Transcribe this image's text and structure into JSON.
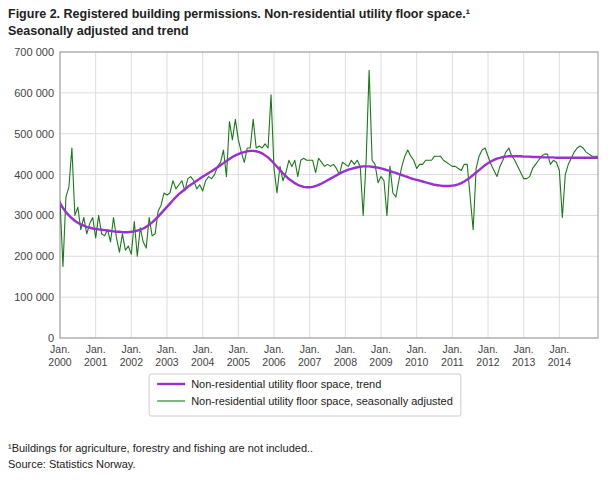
{
  "chart_data": {
    "type": "line",
    "title": "Figure 2. Registered building permissions. Non-residential utility floor space.¹",
    "subtitle": "Seasonally adjusted and trend",
    "annotations": [
      "¹Buildings for agriculture, forestry and fishing are not included..",
      "Source: Statistics Norway."
    ],
    "categories": [
      "Jan.\n2000",
      null,
      null,
      null,
      null,
      null,
      null,
      null,
      null,
      null,
      null,
      null,
      "Jan.\n2001",
      null,
      null,
      null,
      null,
      null,
      null,
      null,
      null,
      null,
      null,
      null,
      "Jan.\n2002",
      null,
      null,
      null,
      null,
      null,
      null,
      null,
      null,
      null,
      null,
      null,
      "Jan.\n2003",
      null,
      null,
      null,
      null,
      null,
      null,
      null,
      null,
      null,
      null,
      null,
      "Jan.\n2004",
      null,
      null,
      null,
      null,
      null,
      null,
      null,
      null,
      null,
      null,
      null,
      "Jan.\n2005",
      null,
      null,
      null,
      null,
      null,
      null,
      null,
      null,
      null,
      null,
      null,
      "Jan.\n2006",
      null,
      null,
      null,
      null,
      null,
      null,
      null,
      null,
      null,
      null,
      null,
      "Jan.\n2007",
      null,
      null,
      null,
      null,
      null,
      null,
      null,
      null,
      null,
      null,
      null,
      "Jan.\n2008",
      null,
      null,
      null,
      null,
      null,
      null,
      null,
      null,
      null,
      null,
      null,
      "Jan.\n2009",
      null,
      null,
      null,
      null,
      null,
      null,
      null,
      null,
      null,
      null,
      null,
      "Jan.\n2010",
      null,
      null,
      null,
      null,
      null,
      null,
      null,
      null,
      null,
      null,
      null,
      "Jan.\n2011",
      null,
      null,
      null,
      null,
      null,
      null,
      null,
      null,
      null,
      null,
      null,
      "Jan.\n2012",
      null,
      null,
      null,
      null,
      null,
      null,
      null,
      null,
      null,
      null,
      null,
      "Jan.\n2013",
      null,
      null,
      null,
      null,
      null,
      null,
      null,
      null,
      null,
      null,
      null,
      "Jan.\n2014",
      null,
      null,
      null,
      null,
      null,
      null,
      null,
      null,
      null,
      null,
      null,
      null,
      null
    ],
    "series": [
      {
        "name": "Non-residential utility floor space, seasonally adjusted",
        "color": "#1a7a1a",
        "values": [
          335000,
          175000,
          345000,
          370000,
          465000,
          300000,
          320000,
          265000,
          295000,
          255000,
          280000,
          295000,
          245000,
          300000,
          255000,
          250000,
          265000,
          235000,
          295000,
          245000,
          210000,
          255000,
          215000,
          225000,
          205000,
          285000,
          200000,
          270000,
          235000,
          220000,
          295000,
          250000,
          255000,
          310000,
          325000,
          355000,
          350000,
          355000,
          385000,
          365000,
          375000,
          385000,
          360000,
          390000,
          395000,
          385000,
          365000,
          375000,
          360000,
          385000,
          395000,
          390000,
          400000,
          420000,
          430000,
          460000,
          395000,
          530000,
          485000,
          535000,
          485000,
          455000,
          430000,
          465000,
          465000,
          535000,
          465000,
          470000,
          465000,
          475000,
          465000,
          595000,
          415000,
          355000,
          420000,
          385000,
          405000,
          435000,
          420000,
          435000,
          395000,
          435000,
          440000,
          435000,
          435000,
          435000,
          405000,
          440000,
          430000,
          420000,
          425000,
          420000,
          425000,
          415000,
          400000,
          430000,
          425000,
          420000,
          435000,
          425000,
          435000,
          420000,
          300000,
          435000,
          655000,
          435000,
          425000,
          380000,
          395000,
          385000,
          300000,
          420000,
          355000,
          345000,
          385000,
          420000,
          445000,
          460000,
          445000,
          435000,
          415000,
          425000,
          425000,
          435000,
          435000,
          435000,
          445000,
          445000,
          445000,
          435000,
          430000,
          425000,
          420000,
          420000,
          415000,
          410000,
          425000,
          425000,
          345000,
          265000,
          415000,
          445000,
          460000,
          465000,
          445000,
          425000,
          410000,
          395000,
          420000,
          435000,
          455000,
          465000,
          445000,
          435000,
          420000,
          405000,
          390000,
          390000,
          395000,
          415000,
          425000,
          435000,
          445000,
          450000,
          450000,
          425000,
          435000,
          430000,
          410000,
          295000,
          400000,
          425000,
          440000,
          455000,
          465000,
          470000,
          465000,
          455000,
          450000,
          445000,
          445000,
          445000
        ]
      },
      {
        "name": "Non-residential utility floor space, trend",
        "color": "#9b30d0",
        "values": [
          330000,
          318000,
          308000,
          300000,
          293000,
          287000,
          282000,
          278000,
          275000,
          272000,
          270000,
          268000,
          267000,
          266000,
          265000,
          264000,
          263000,
          262000,
          261000,
          260000,
          260000,
          259000,
          259000,
          259000,
          260000,
          261000,
          263000,
          265000,
          268000,
          272000,
          277000,
          283000,
          290000,
          297000,
          305000,
          313000,
          321000,
          329000,
          337000,
          345000,
          352000,
          358000,
          364000,
          370000,
          375000,
          380000,
          385000,
          390000,
          395000,
          399000,
          404000,
          408000,
          413000,
          418000,
          423000,
          428000,
          433000,
          438000,
          443000,
          447000,
          450000,
          453000,
          455000,
          457000,
          458000,
          458000,
          457000,
          455000,
          452000,
          447000,
          442000,
          435000,
          427000,
          419000,
          411000,
          403000,
          396000,
          389000,
          384000,
          379000,
          375000,
          372000,
          370000,
          369000,
          369000,
          370000,
          372000,
          375000,
          378000,
          382000,
          386000,
          390000,
          394000,
          398000,
          402000,
          406000,
          409000,
          412000,
          414000,
          416000,
          418000,
          419000,
          420000,
          420000,
          420000,
          419000,
          418000,
          417000,
          415000,
          413000,
          411000,
          409000,
          406000,
          404000,
          401000,
          399000,
          396000,
          394000,
          391000,
          389000,
          387000,
          385000,
          383000,
          381000,
          379000,
          377000,
          375000,
          374000,
          373000,
          372000,
          372000,
          372000,
          373000,
          374000,
          376000,
          379000,
          383000,
          388000,
          393000,
          399000,
          405000,
          411000,
          417000,
          423000,
          428000,
          432000,
          436000,
          439000,
          441000,
          443000,
          444000,
          445000,
          445000,
          445000,
          445000,
          445000,
          444000,
          444000,
          444000,
          443000,
          443000,
          443000,
          442000,
          442000,
          442000,
          442000,
          442000,
          441000,
          441000,
          441000,
          441000,
          441000,
          441000,
          441000,
          441000,
          441000,
          441000,
          441000,
          441000,
          441000,
          441000,
          441000
        ]
      }
    ],
    "ylim": [
      0,
      700000
    ],
    "yticks": [
      0,
      {
        "value": 100000,
        "label": "100 000"
      },
      {
        "value": 200000,
        "label": "200 000"
      },
      {
        "value": 300000,
        "label": "300 000"
      },
      {
        "value": 400000,
        "label": "400 000"
      },
      {
        "value": 500000,
        "label": "500 000"
      },
      {
        "value": 600000,
        "label": "600 000"
      },
      {
        "value": 700000,
        "label": "700 000"
      }
    ],
    "grid": true,
    "legend": "bottom"
  }
}
